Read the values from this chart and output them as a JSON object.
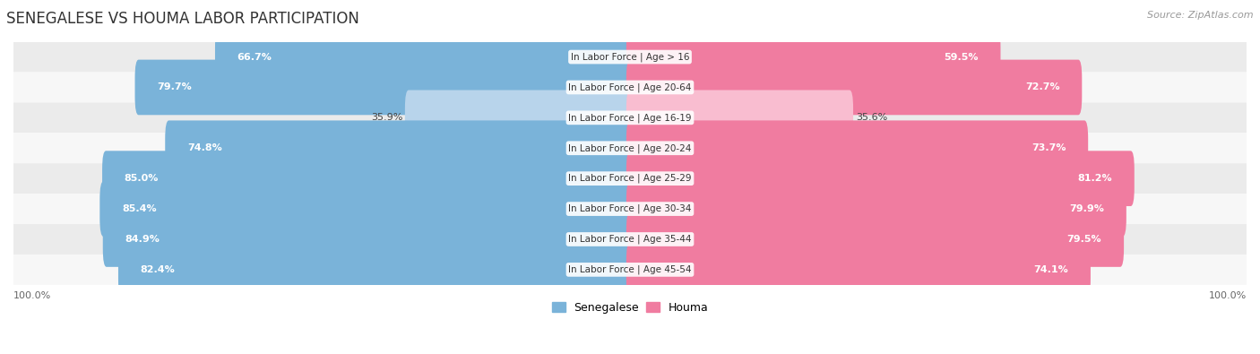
{
  "title": "SENEGALESE VS HOUMA LABOR PARTICIPATION",
  "source": "Source: ZipAtlas.com",
  "categories": [
    "In Labor Force | Age > 16",
    "In Labor Force | Age 20-64",
    "In Labor Force | Age 16-19",
    "In Labor Force | Age 20-24",
    "In Labor Force | Age 25-29",
    "In Labor Force | Age 30-34",
    "In Labor Force | Age 35-44",
    "In Labor Force | Age 45-54"
  ],
  "senegalese_values": [
    66.7,
    79.7,
    35.9,
    74.8,
    85.0,
    85.4,
    84.9,
    82.4
  ],
  "houma_values": [
    59.5,
    72.7,
    35.6,
    73.7,
    81.2,
    79.9,
    79.5,
    74.1
  ],
  "senegalese_color": "#7ab3d9",
  "senegalese_color_light": "#b8d4eb",
  "houma_color": "#f07ca0",
  "houma_color_light": "#f9bdd0",
  "row_bg_even": "#ebebeb",
  "row_bg_odd": "#f7f7f7",
  "max_value": 100.0,
  "bar_height": 0.62,
  "title_fontsize": 12,
  "value_fontsize": 8,
  "legend_fontsize": 9,
  "source_fontsize": 8,
  "axis_label_fontsize": 8,
  "bg_color": "#ffffff"
}
